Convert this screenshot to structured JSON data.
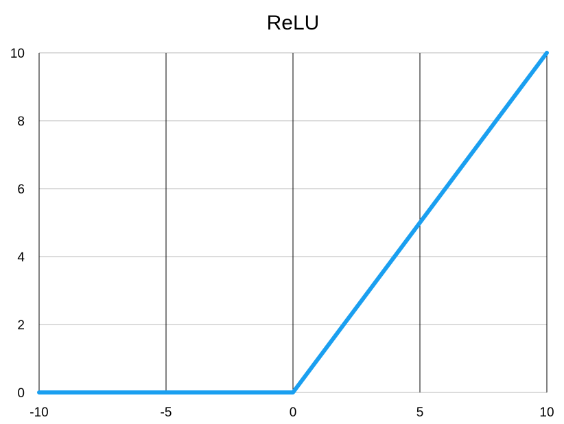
{
  "chart_data": {
    "type": "line",
    "title": "ReLU",
    "xlabel": "",
    "ylabel": "",
    "xlim": [
      -10,
      10
    ],
    "ylim": [
      0,
      10
    ],
    "x_ticks": [
      -10,
      -5,
      0,
      5,
      10
    ],
    "y_ticks": [
      0,
      2,
      4,
      6,
      8,
      10
    ],
    "x_tick_labels": [
      "-10",
      "-5",
      "0",
      "5",
      "10"
    ],
    "y_tick_labels": [
      "0",
      "2",
      "4",
      "6",
      "8",
      "10"
    ],
    "grid": true,
    "legend": "none",
    "series": [
      {
        "color": "#1a9ff0",
        "x": [
          -10,
          0,
          10
        ],
        "y": [
          0,
          0,
          10
        ]
      }
    ]
  }
}
